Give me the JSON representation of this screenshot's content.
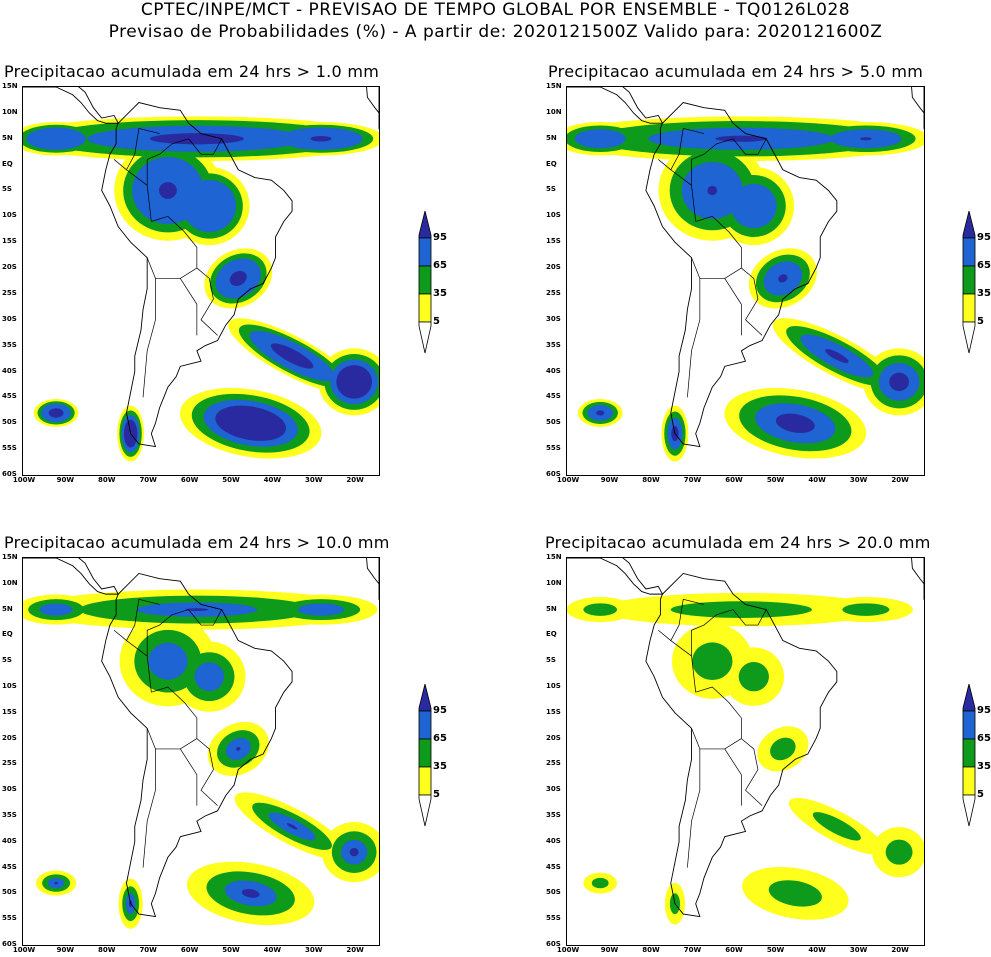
{
  "header": {
    "line1": "CPTEC/INPE/MCT - PREVISAO DE TEMPO GLOBAL POR ENSEMBLE - TQ0126L028",
    "line2": "Previsao de Probabilidades (%) -  A partir de: 2020121500Z  Valido para: 2020121600Z"
  },
  "panels": [
    {
      "title": "Precipitacao acumulada em 24 hrs > 1.0 mm"
    },
    {
      "title": "Precipitacao acumulada em 24 hrs > 5.0 mm"
    },
    {
      "title": "Precipitacao acumulada em 24 hrs > 10.0 mm"
    },
    {
      "title": "Precipitacao acumulada em 24 hrs > 20.0 mm"
    }
  ],
  "lat_labels": [
    "15N",
    "10N",
    "5N",
    "EQ",
    "5S",
    "10S",
    "15S",
    "20S",
    "25S",
    "30S",
    "35S",
    "40S",
    "45S",
    "50S",
    "55S",
    "60S"
  ],
  "lon_labels": [
    "100W",
    "90W",
    "80W",
    "70W",
    "60W",
    "50W",
    "40W",
    "30W",
    "20W"
  ],
  "colorbar": {
    "labels": [
      "95",
      "65",
      "35",
      "5"
    ],
    "colors": [
      "#2a2aa0",
      "#1e64d2",
      "#0e9a1a",
      "#ffff1e"
    ]
  }
}
